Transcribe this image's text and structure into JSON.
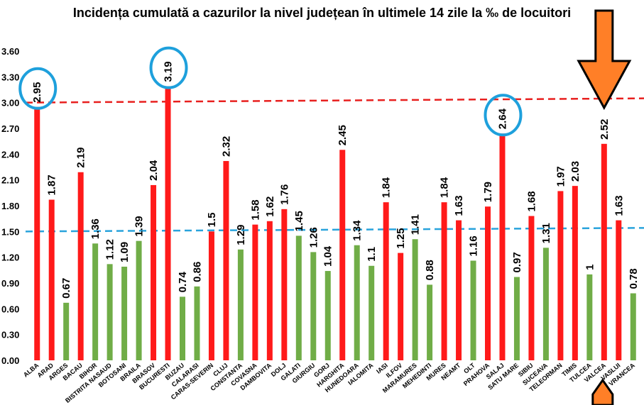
{
  "chart_data": {
    "type": "bar",
    "title": "Incidența cumulată a cazurilor la nivel județean în ultimele 14 zile la ‰ de locuitori",
    "xlabel": "",
    "ylabel": "",
    "ylim": [
      0,
      3.6
    ],
    "ytick_labels": [
      "0.00",
      "0.30",
      "0.60",
      "0.90",
      "1.20",
      "1.50",
      "1.80",
      "2.10",
      "2.40",
      "2.70",
      "3.00",
      "3.30",
      "3.60"
    ],
    "grid": false,
    "categories": [
      "ALBA",
      "ARAD",
      "ARGES",
      "BACAU",
      "BIHOR",
      "BISTRITA NASAUD",
      "BOTOSANI",
      "BRAILA",
      "BRASOV",
      "BUCURESTI",
      "BUZAU",
      "CALARASI",
      "CARAS-SEVERIN",
      "CLUJ",
      "CONSTANTA",
      "COVASNA",
      "DAMBOVITA",
      "DOLJ",
      "GALATI",
      "GIURGIU",
      "GORJ",
      "HARGHITA",
      "HUNEDOARA",
      "IALOMITA",
      "IASI",
      "ILFOV",
      "MARAMURES",
      "MEHEDINTI",
      "MURES",
      "NEAMT",
      "OLT",
      "PRAHOVA",
      "SALAJ",
      "SATU MARE",
      "SIBIU",
      "SUCEAVA",
      "TELEORMAN",
      "TIMIS",
      "TULCEA",
      "VALCEA",
      "VASLUI",
      "VRANCEA"
    ],
    "values": [
      2.95,
      1.87,
      0.67,
      2.19,
      1.36,
      1.12,
      1.09,
      1.39,
      2.04,
      3.19,
      0.74,
      0.86,
      1.5,
      2.32,
      1.29,
      1.58,
      1.62,
      1.76,
      1.45,
      1.26,
      1.04,
      2.45,
      1.34,
      1.1,
      1.84,
      1.25,
      1.41,
      0.88,
      1.84,
      1.63,
      1.16,
      1.79,
      2.64,
      0.97,
      1.68,
      1.31,
      1.97,
      2.03,
      1,
      2.52,
      1.63,
      0.78
    ],
    "value_labels": [
      "2.95",
      "1.87",
      "0.67",
      "2.19",
      "1.36",
      "1.12",
      "1.09",
      "1.39",
      "2.04",
      "3.19",
      "0.74",
      "0.86",
      "1.5",
      "2.32",
      "1.29",
      "1.58",
      "1.62",
      "1.76",
      "1.45",
      "1.26",
      "1.04",
      "2.45",
      "1.34",
      "1.1",
      "1.84",
      "1.25",
      "1.41",
      "0.88",
      "1.84",
      "1.63",
      "1.16",
      "1.79",
      "2.64",
      "0.97",
      "1.68",
      "1.31",
      "1.97",
      "2.03",
      "1",
      "2.52",
      "1.63",
      "0.78"
    ],
    "bar_status": [
      "red",
      "red",
      "green",
      "red",
      "green",
      "green",
      "green",
      "green",
      "red",
      "red",
      "green",
      "green",
      "red",
      "red",
      "green",
      "red",
      "red",
      "red",
      "green",
      "green",
      "green",
      "red",
      "green",
      "green",
      "red",
      "red",
      "green",
      "green",
      "red",
      "red",
      "green",
      "red",
      "red",
      "green",
      "red",
      "green",
      "red",
      "red",
      "green",
      "red",
      "red",
      "green"
    ],
    "reference_lines": [
      {
        "value": 3.0,
        "color": "#e8201f",
        "style": "dashed"
      },
      {
        "value": 1.5,
        "color": "#29a3dc",
        "style": "dashed"
      }
    ],
    "highlighted_categories": [
      "ALBA",
      "BUCURESTI",
      "SALAJ"
    ],
    "arrow_target": "VALCEA"
  },
  "colors": {
    "red": "#ff1a1a",
    "green": "#70ad47",
    "circle": "#1ea0dc",
    "arrow": "#ff7f27"
  }
}
